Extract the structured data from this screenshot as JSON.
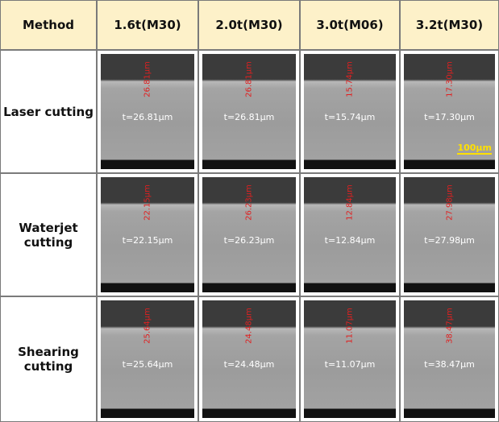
{
  "table": {
    "header": [
      "Method",
      "1.6t(M30)",
      "2.0t(M30)",
      "3.0t(M06)",
      "3.2t(M30)"
    ],
    "rows": [
      {
        "method": [
          "Laser cutting"
        ],
        "cells": [
          {
            "thickness": "t=26.81µm",
            "marker": "26.81µm"
          },
          {
            "thickness": "t=26.81µm",
            "marker": "26.81µm"
          },
          {
            "thickness": "t=15.74µm",
            "marker": "15.74µm"
          },
          {
            "thickness": "t=17.30µm",
            "marker": "17.30µm",
            "scale_bar": "100µm"
          }
        ]
      },
      {
        "method": [
          "Waterjet",
          "cutting"
        ],
        "cells": [
          {
            "thickness": "t=22.15µm",
            "marker": "22.15µm"
          },
          {
            "thickness": "t=26.23µm",
            "marker": "26.23µm"
          },
          {
            "thickness": "t=12.84µm",
            "marker": "12.84µm"
          },
          {
            "thickness": "t=27.98µm",
            "marker": "27.98µm"
          }
        ]
      },
      {
        "method": [
          "Shearing",
          "cutting"
        ],
        "cells": [
          {
            "thickness": "t=25.64µm",
            "marker": "25.64µm"
          },
          {
            "thickness": "t=24.48µm",
            "marker": "24.48µm"
          },
          {
            "thickness": "t=11.07µm",
            "marker": "11.07µm"
          },
          {
            "thickness": "t=38.47µm",
            "marker": "38.47µm"
          }
        ]
      }
    ]
  }
}
